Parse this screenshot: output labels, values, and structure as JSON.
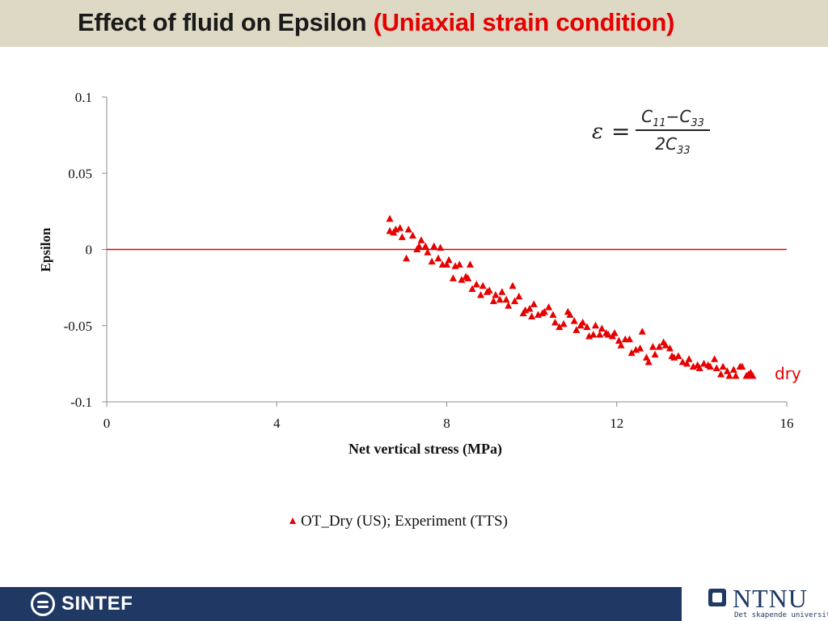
{
  "slide": {
    "title": "Effect of fluid on Epsilon ",
    "title_highlight": "(Uniaxial strain condition)",
    "formula": {
      "lhs": "ε",
      "eq": "=",
      "numerator": "C11−C33",
      "denominator": "2C33"
    },
    "annotation": "dry",
    "legend_label": "OT_Dry (US); Experiment (TTS)"
  },
  "footer": {
    "left_logo": "SINTEF",
    "right_logo": "NTNU",
    "right_tagline": "Det skapende universitet"
  },
  "colors": {
    "series": "#e60000",
    "title_bar": "#ddd9c4",
    "footer": "#1f3864"
  },
  "chart_data": {
    "type": "scatter",
    "xlabel": "Net vertical stress (MPa)",
    "ylabel": "Epsilon",
    "xlim": [
      0,
      16
    ],
    "ylim": [
      -0.1,
      0.1
    ],
    "xticks": [
      0,
      4,
      8,
      12,
      16
    ],
    "yticks": [
      0.1,
      0.05,
      0,
      -0.05,
      -0.1
    ],
    "ytick_labels": [
      "0.1",
      "0.05",
      "0",
      "-0.05",
      "-0.1"
    ],
    "grid": false,
    "legend_position": "bottom",
    "reference_line": {
      "y": 0,
      "x": [
        0,
        16
      ]
    },
    "series": [
      {
        "name": "OT_Dry (US); Experiment (TTS)",
        "marker": "triangle",
        "points": [
          [
            6.66,
            0.02
          ],
          [
            6.66,
            0.012
          ],
          [
            6.75,
            0.011
          ],
          [
            6.8,
            0.013
          ],
          [
            6.9,
            0.014
          ],
          [
            6.95,
            0.008
          ],
          [
            7.05,
            -0.006
          ],
          [
            7.1,
            0.013
          ],
          [
            7.2,
            0.009
          ],
          [
            7.3,
            0.0
          ],
          [
            7.35,
            0.002
          ],
          [
            7.4,
            0.006
          ],
          [
            7.5,
            0.002
          ],
          [
            7.55,
            -0.002
          ],
          [
            7.65,
            -0.008
          ],
          [
            7.7,
            0.002
          ],
          [
            7.8,
            -0.006
          ],
          [
            7.85,
            0.001
          ],
          [
            7.9,
            -0.01
          ],
          [
            8.0,
            -0.01
          ],
          [
            8.05,
            -0.007
          ],
          [
            8.15,
            -0.019
          ],
          [
            8.2,
            -0.011
          ],
          [
            8.3,
            -0.01
          ],
          [
            8.35,
            -0.02
          ],
          [
            8.45,
            -0.018
          ],
          [
            8.5,
            -0.019
          ],
          [
            8.55,
            -0.01
          ],
          [
            8.6,
            -0.026
          ],
          [
            8.7,
            -0.023
          ],
          [
            8.8,
            -0.03
          ],
          [
            8.85,
            -0.024
          ],
          [
            8.95,
            -0.028
          ],
          [
            9.0,
            -0.027
          ],
          [
            9.1,
            -0.034
          ],
          [
            9.15,
            -0.03
          ],
          [
            9.25,
            -0.033
          ],
          [
            9.3,
            -0.028
          ],
          [
            9.4,
            -0.033
          ],
          [
            9.45,
            -0.037
          ],
          [
            9.55,
            -0.024
          ],
          [
            9.6,
            -0.034
          ],
          [
            9.7,
            -0.031
          ],
          [
            9.8,
            -0.042
          ],
          [
            9.85,
            -0.04
          ],
          [
            9.95,
            -0.039
          ],
          [
            10.0,
            -0.044
          ],
          [
            10.05,
            -0.036
          ],
          [
            10.15,
            -0.043
          ],
          [
            10.25,
            -0.042
          ],
          [
            10.3,
            -0.041
          ],
          [
            10.4,
            -0.038
          ],
          [
            10.5,
            -0.043
          ],
          [
            10.55,
            -0.048
          ],
          [
            10.65,
            -0.051
          ],
          [
            10.75,
            -0.049
          ],
          [
            10.85,
            -0.041
          ],
          [
            10.9,
            -0.043
          ],
          [
            11.0,
            -0.047
          ],
          [
            11.05,
            -0.053
          ],
          [
            11.15,
            -0.05
          ],
          [
            11.2,
            -0.048
          ],
          [
            11.3,
            -0.051
          ],
          [
            11.35,
            -0.057
          ],
          [
            11.45,
            -0.056
          ],
          [
            11.5,
            -0.05
          ],
          [
            11.6,
            -0.056
          ],
          [
            11.65,
            -0.052
          ],
          [
            11.75,
            -0.055
          ],
          [
            11.8,
            -0.056
          ],
          [
            11.9,
            -0.057
          ],
          [
            11.95,
            -0.055
          ],
          [
            12.05,
            -0.06
          ],
          [
            12.1,
            -0.063
          ],
          [
            12.2,
            -0.059
          ],
          [
            12.3,
            -0.059
          ],
          [
            12.35,
            -0.068
          ],
          [
            12.45,
            -0.066
          ],
          [
            12.55,
            -0.065
          ],
          [
            12.6,
            -0.054
          ],
          [
            12.7,
            -0.071
          ],
          [
            12.75,
            -0.074
          ],
          [
            12.85,
            -0.064
          ],
          [
            12.9,
            -0.069
          ],
          [
            13.0,
            -0.064
          ],
          [
            13.1,
            -0.061
          ],
          [
            13.15,
            -0.063
          ],
          [
            13.25,
            -0.065
          ],
          [
            13.3,
            -0.07
          ],
          [
            13.35,
            -0.071
          ],
          [
            13.45,
            -0.07
          ],
          [
            13.55,
            -0.074
          ],
          [
            13.65,
            -0.075
          ],
          [
            13.7,
            -0.072
          ],
          [
            13.8,
            -0.077
          ],
          [
            13.9,
            -0.076
          ],
          [
            13.95,
            -0.078
          ],
          [
            14.05,
            -0.075
          ],
          [
            14.15,
            -0.076
          ],
          [
            14.2,
            -0.077
          ],
          [
            14.3,
            -0.072
          ],
          [
            14.35,
            -0.078
          ],
          [
            14.45,
            -0.082
          ],
          [
            14.5,
            -0.077
          ],
          [
            14.6,
            -0.08
          ],
          [
            14.65,
            -0.083
          ],
          [
            14.75,
            -0.079
          ],
          [
            14.8,
            -0.083
          ],
          [
            14.9,
            -0.077
          ],
          [
            14.95,
            -0.077
          ],
          [
            15.05,
            -0.083
          ],
          [
            15.1,
            -0.082
          ],
          [
            15.15,
            -0.081
          ],
          [
            15.2,
            -0.083
          ]
        ]
      }
    ]
  }
}
